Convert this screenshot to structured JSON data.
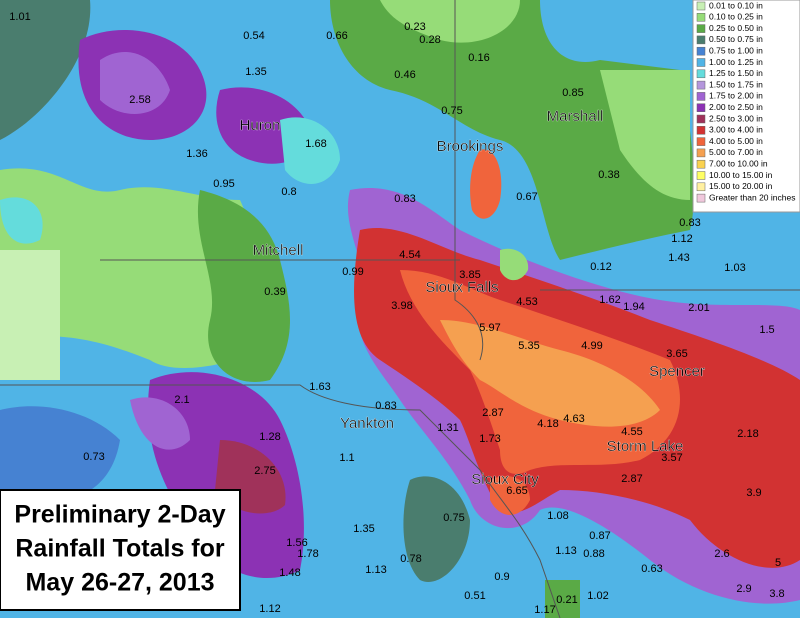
{
  "map": {
    "legend": {
      "entries": [
        {
          "label": "0.01 to 0.10 in",
          "color": "#c8f0b4"
        },
        {
          "label": "0.10 to 0.25 in",
          "color": "#96dc78"
        },
        {
          "label": "0.25 to 0.50 in",
          "color": "#5aaa46"
        },
        {
          "label": "0.50 to 0.75 in",
          "color": "#4a7d6e"
        },
        {
          "label": "0.75 to 1.00 in",
          "color": "#4682d2"
        },
        {
          "label": "1.00 to 1.25 in",
          "color": "#50b4e6"
        },
        {
          "label": "1.25 to 1.50 in",
          "color": "#64dcdc"
        },
        {
          "label": "1.50 to 1.75 in",
          "color": "#b496dc"
        },
        {
          "label": "1.75 to 2.00 in",
          "color": "#a064d2"
        },
        {
          "label": "2.00 to 2.50 in",
          "color": "#8c32b4"
        },
        {
          "label": "2.50 to 3.00 in",
          "color": "#a0325a"
        },
        {
          "label": "3.00 to 4.00 in",
          "color": "#d23232"
        },
        {
          "label": "4.00 to 5.00 in",
          "color": "#f0643c"
        },
        {
          "label": "5.00 to 7.00 in",
          "color": "#f5a050"
        },
        {
          "label": "7.00 to 10.00 in",
          "color": "#fad250"
        },
        {
          "label": "10.00 to 15.00 in",
          "color": "#ffff64"
        },
        {
          "label": "15.00 to 20.00 in",
          "color": "#fff0a0"
        },
        {
          "label": "Greater than 20 inches",
          "color": "#f0c8dc"
        }
      ]
    },
    "cities": [
      "Huron",
      "Brookings",
      "Marshall",
      "Mitchell",
      "Sioux Falls",
      "Spencer",
      "Yankton",
      "Storm Lake",
      "Sioux City"
    ],
    "rainfall_labels": [
      "1.01",
      "0.54",
      "0.66",
      "0.23",
      "0.28",
      "0.16",
      "0.46",
      "1.35",
      "2.58",
      "0.75",
      "0.85",
      "1.36",
      "1.68",
      "0.95",
      "0.8",
      "0.38",
      "0.83",
      "0.67",
      "0.83",
      "1.12",
      "1.43",
      "1.03",
      "0.12",
      "4.54",
      "0.99",
      "3.85",
      "0.39",
      "3.98",
      "4.53",
      "1.62",
      "1.94",
      "2.01",
      "1.5",
      "5.97",
      "5.35",
      "4.99",
      "3.65",
      "1.63",
      "2.1",
      "0.83",
      "2.87",
      "4.18",
      "4.63",
      "1.31",
      "1.73",
      "1.28",
      "4.55",
      "2.18",
      "3.57",
      "0.73",
      "1.1",
      "2.75",
      "2.87",
      "6.65",
      "3.9",
      "0.75",
      "1.08",
      "1.35",
      "0.87",
      "1.56",
      "1.78",
      "1.13",
      "0.88",
      "2.6",
      "5",
      "0.78",
      "1.13",
      "1.48",
      "0.9",
      "0.63",
      "2.9",
      "3.8",
      "0.51",
      "1.02",
      "0.21",
      "1.12",
      "1.17"
    ],
    "title_box": {
      "lines": [
        "Preliminary 2-Day",
        "Rainfall Totals for",
        "May 26-27, 2013"
      ]
    }
  }
}
